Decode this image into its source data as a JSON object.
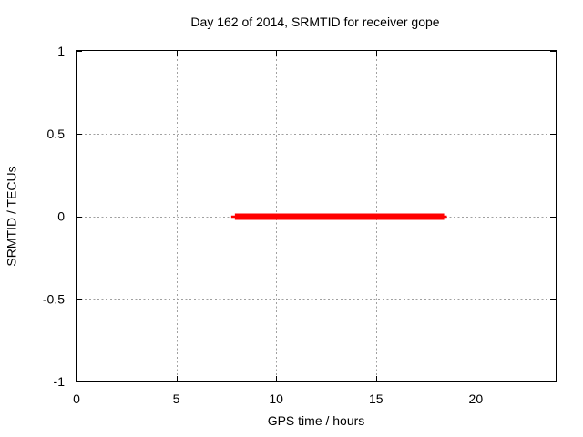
{
  "chart_data": {
    "type": "line",
    "title": "Day 162 of 2014, SRMTID for receiver gope",
    "xlabel": "GPS time / hours",
    "ylabel": "SRMTID / TECUs",
    "xlim": [
      0,
      24
    ],
    "ylim": [
      -1,
      1
    ],
    "xticks": [
      0,
      5,
      10,
      15,
      20
    ],
    "xtick_labels": [
      "0",
      "5",
      "10",
      "15",
      "20"
    ],
    "yticks": [
      -1,
      -0.5,
      0,
      0.5,
      1
    ],
    "ytick_labels": [
      "-1",
      "-0.5",
      "0",
      "0.5",
      "1"
    ],
    "grid": true,
    "legend": "none",
    "grid_color": "#a0a0a0",
    "border_color": "#000000",
    "series": [
      {
        "name": "SRMTID",
        "color": "#ff0000",
        "style": "thick horizontal line with thin end caps",
        "y_value": 0,
        "x_start": 7.75,
        "x_end": 18.55,
        "points": [
          [
            7.75,
            0
          ],
          [
            18.55,
            0
          ]
        ]
      }
    ]
  }
}
